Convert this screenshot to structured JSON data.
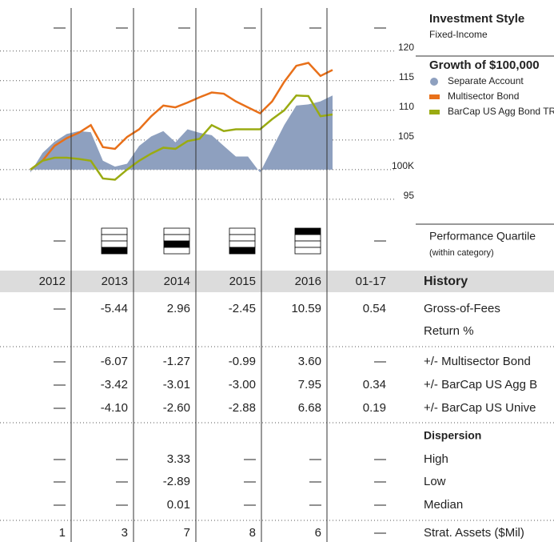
{
  "style_row": {
    "title": "Investment Style",
    "subtitle": "Fixed-Income",
    "cells": [
      "—",
      "—",
      "—",
      "—",
      "—",
      "—"
    ]
  },
  "chart_data": {
    "type": "line",
    "title": "Growth of $100,000",
    "ylim": [
      93.5,
      120.5
    ],
    "yticks": [
      95,
      {
        "value": 100,
        "label": "100K"
      },
      105,
      110,
      115,
      120
    ],
    "grid": true,
    "series": [
      {
        "name": "Separate Account",
        "color": "#8ea0bf",
        "kind": "area",
        "values": [
          99.5,
          102.8,
          104.7,
          106,
          106.5,
          106.3,
          101.5,
          100.5,
          101,
          104,
          105.6,
          106.5,
          104.6,
          106.8,
          106.2,
          105.8,
          104,
          102.2,
          102.2,
          99.5,
          103.5,
          107.5,
          110.8,
          111,
          111.5,
          112.5
        ]
      },
      {
        "name": "Multisector Bond",
        "color": "#e8701a",
        "kind": "line",
        "values": [
          100,
          101.5,
          104,
          105.3,
          106.2,
          107.5,
          103.8,
          103.5,
          105.5,
          106.8,
          109,
          110.8,
          110.5,
          111.3,
          112.2,
          113,
          112.8,
          111.5,
          110.5,
          109.5,
          111.5,
          114.8,
          117.5,
          118,
          115.8,
          116.8
        ]
      },
      {
        "name": "BarCap US Agg Bond TR",
        "color": "#9aab12",
        "kind": "line",
        "values": [
          100,
          101.5,
          102,
          102,
          101.8,
          101.5,
          98.5,
          98.3,
          100,
          101.5,
          102.7,
          103.7,
          103.5,
          104.8,
          105.2,
          107.5,
          106.5,
          106.8,
          106.8,
          106.8,
          108.5,
          110,
          112.5,
          112.4,
          109,
          109.3
        ]
      }
    ]
  },
  "quartile": {
    "title": "Performance Quartile",
    "subtitle": "(within category)",
    "cells": [
      "—",
      4,
      3,
      4,
      1,
      "—"
    ]
  },
  "table": {
    "header": "History",
    "columns": [
      "2012",
      "2013",
      "2014",
      "2015",
      "2016",
      "01-17"
    ],
    "dispersion_title": "Dispersion",
    "rows": [
      {
        "label": [
          "Gross-of-Fees",
          "Return %"
        ],
        "cells": [
          "—",
          "-5.44",
          "2.96",
          "-2.45",
          "10.59",
          "0.54"
        ]
      },
      {
        "label": [
          "+/- Multisector Bond"
        ],
        "cells": [
          "—",
          "-6.07",
          "-1.27",
          "-0.99",
          "3.60",
          "—"
        ]
      },
      {
        "label": [
          "+/- BarCap US Agg B"
        ],
        "cells": [
          "—",
          "-3.42",
          "-3.01",
          "-3.00",
          "7.95",
          "0.34"
        ]
      },
      {
        "label": [
          "+/- BarCap US Unive"
        ],
        "cells": [
          "—",
          "-4.10",
          "-2.60",
          "-2.88",
          "6.68",
          "0.19"
        ]
      },
      {
        "label": [
          "High"
        ],
        "cells": [
          "—",
          "—",
          "3.33",
          "—",
          "—",
          "—"
        ]
      },
      {
        "label": [
          "Low"
        ],
        "cells": [
          "—",
          "—",
          "-2.89",
          "—",
          "—",
          "—"
        ]
      },
      {
        "label": [
          "Median"
        ],
        "cells": [
          "—",
          "—",
          "0.01",
          "—",
          "—",
          "—"
        ]
      },
      {
        "label": [
          "Strat. Assets ($Mil)"
        ],
        "cells": [
          "1",
          "3",
          "7",
          "8",
          "6",
          "—"
        ]
      }
    ]
  }
}
